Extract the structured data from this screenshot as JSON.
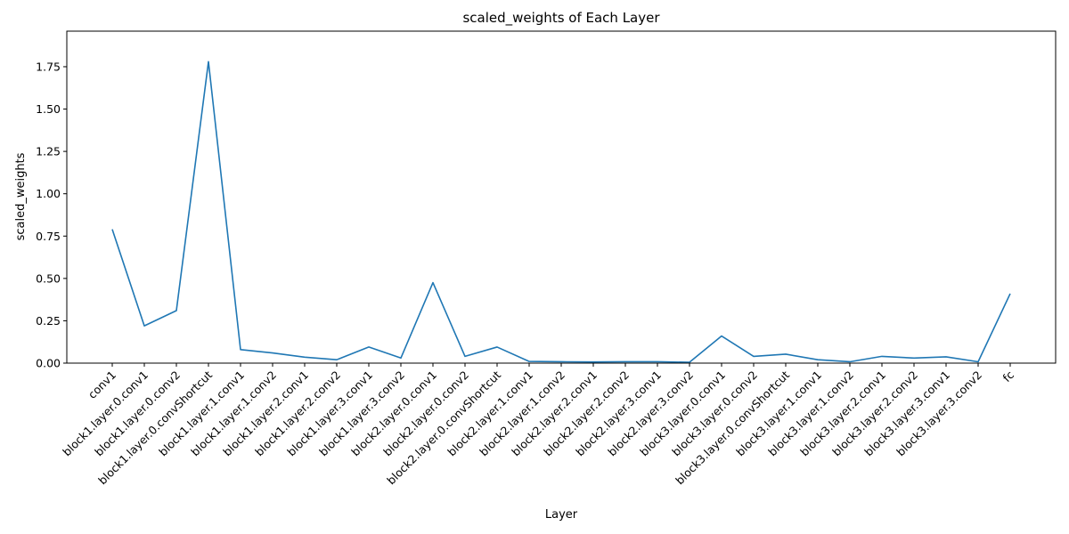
{
  "chart_data": {
    "type": "line",
    "title": "scaled_weights of Each Layer",
    "xlabel": "Layer",
    "ylabel": "scaled_weights",
    "ylim": [
      0,
      1.96
    ],
    "yticks": [
      0.0,
      0.25,
      0.5,
      0.75,
      1.0,
      1.25,
      1.5,
      1.75
    ],
    "ytick_labels": [
      "0.00",
      "0.25",
      "0.50",
      "0.75",
      "1.00",
      "1.25",
      "1.50",
      "1.75"
    ],
    "grid": false,
    "categories": [
      "conv1",
      "block1.layer.0.conv1",
      "block1.layer.0.conv2",
      "block1.layer.0.convShortcut",
      "block1.layer.1.conv1",
      "block1.layer.1.conv2",
      "block1.layer.2.conv1",
      "block1.layer.2.conv2",
      "block1.layer.3.conv1",
      "block1.layer.3.conv2",
      "block2.layer.0.conv1",
      "block2.layer.0.conv2",
      "block2.layer.0.convShortcut",
      "block2.layer.1.conv1",
      "block2.layer.1.conv2",
      "block2.layer.2.conv1",
      "block2.layer.2.conv2",
      "block2.layer.3.conv1",
      "block2.layer.3.conv2",
      "block3.layer.0.conv1",
      "block3.layer.0.conv2",
      "block3.layer.0.convShortcut",
      "block3.layer.1.conv1",
      "block3.layer.1.conv2",
      "block3.layer.2.conv1",
      "block3.layer.2.conv2",
      "block3.layer.3.conv1",
      "block3.layer.3.conv2",
      "fc"
    ],
    "series": [
      {
        "name": "scaled_weights",
        "color": "#1f77b4",
        "values": [
          0.79,
          0.22,
          0.31,
          1.78,
          0.08,
          0.06,
          0.035,
          0.02,
          0.095,
          0.03,
          0.475,
          0.04,
          0.095,
          0.01,
          0.008,
          0.007,
          0.008,
          0.008,
          0.005,
          0.16,
          0.04,
          0.053,
          0.02,
          0.008,
          0.04,
          0.03,
          0.037,
          0.008,
          0.41
        ]
      }
    ]
  }
}
